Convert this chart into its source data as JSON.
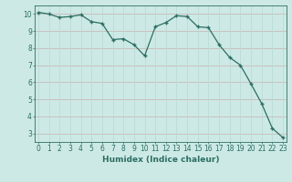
{
  "x": [
    0,
    1,
    2,
    3,
    4,
    5,
    6,
    7,
    8,
    9,
    10,
    11,
    12,
    13,
    14,
    15,
    16,
    17,
    18,
    19,
    20,
    21,
    22,
    23
  ],
  "y": [
    10.1,
    10.0,
    9.8,
    9.85,
    9.95,
    9.55,
    9.45,
    8.5,
    8.55,
    8.2,
    7.55,
    9.25,
    9.5,
    9.9,
    9.85,
    9.25,
    9.2,
    8.2,
    7.45,
    7.0,
    5.9,
    4.75,
    3.3,
    2.75
  ],
  "line_color": "#2d6e63",
  "marker": "+",
  "marker_size": 3.5,
  "marker_lw": 1.0,
  "bg_color": "#cce9e5",
  "grid_h_color": "#c8b0b0",
  "grid_v_color": "#b8d8d4",
  "xlabel": "Humidex (Indice chaleur)",
  "xlabel_fontsize": 6.5,
  "tick_fontsize": 5.5,
  "xlim": [
    -0.3,
    23.3
  ],
  "ylim": [
    2.5,
    10.5
  ],
  "yticks": [
    3,
    4,
    5,
    6,
    7,
    8,
    9,
    10
  ],
  "xticks": [
    0,
    1,
    2,
    3,
    4,
    5,
    6,
    7,
    8,
    9,
    10,
    11,
    12,
    13,
    14,
    15,
    16,
    17,
    18,
    19,
    20,
    21,
    22,
    23
  ]
}
